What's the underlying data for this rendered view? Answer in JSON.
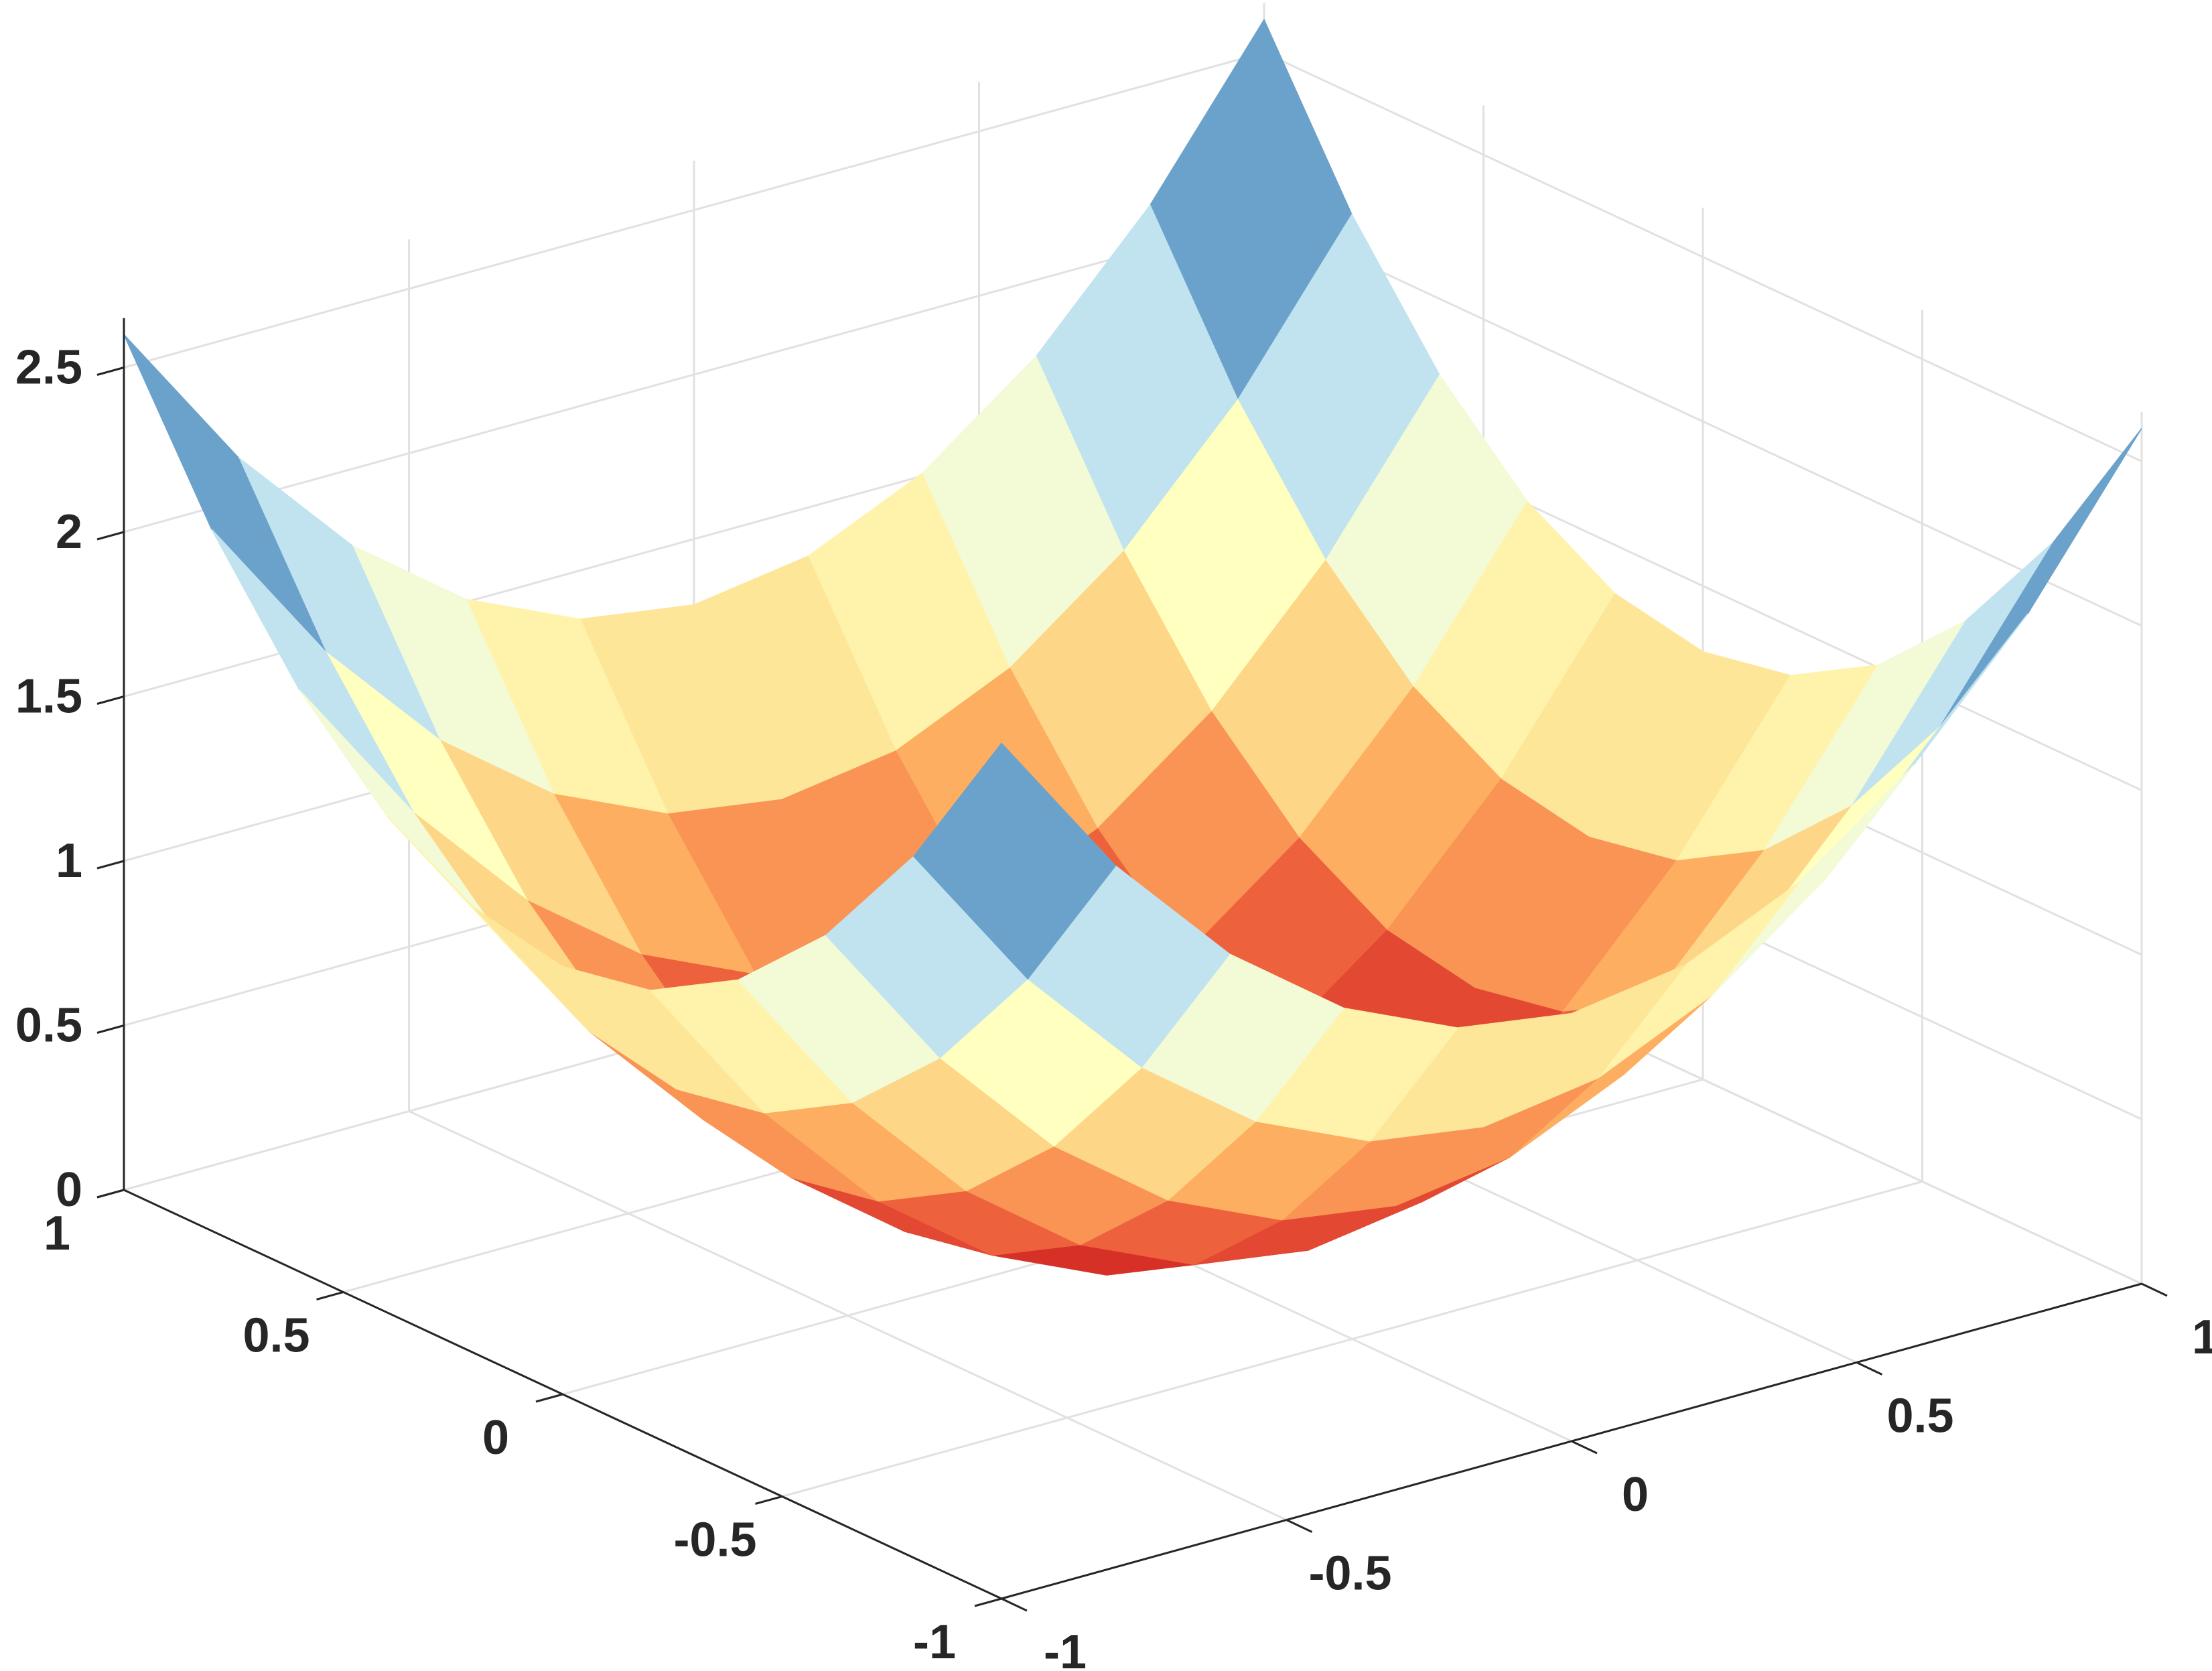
{
  "chart_data": {
    "type": "surface",
    "x": [
      -1,
      -0.8,
      -0.6,
      -0.4,
      -0.2,
      0,
      0.2,
      0.4,
      0.6,
      0.8,
      1
    ],
    "y": [
      -1,
      -0.8,
      -0.6,
      -0.4,
      -0.2,
      0,
      0.2,
      0.4,
      0.6,
      0.8,
      1
    ],
    "z": [
      [
        2.6,
        2.132,
        1.768,
        1.508,
        1.352,
        1.3,
        1.352,
        1.508,
        1.768,
        2.132,
        2.6
      ],
      [
        2.132,
        1.664,
        1.3,
        1.04,
        0.884,
        0.832,
        0.884,
        1.04,
        1.3,
        1.664,
        2.132
      ],
      [
        1.768,
        1.3,
        0.936,
        0.676,
        0.52,
        0.468,
        0.52,
        0.676,
        0.936,
        1.3,
        1.768
      ],
      [
        1.508,
        1.04,
        0.676,
        0.416,
        0.26,
        0.208,
        0.26,
        0.416,
        0.676,
        1.04,
        1.508
      ],
      [
        1.352,
        0.884,
        0.52,
        0.26,
        0.104,
        0.052,
        0.104,
        0.26,
        0.52,
        0.884,
        1.352
      ],
      [
        1.3,
        0.832,
        0.468,
        0.208,
        0.052,
        0,
        0.052,
        0.208,
        0.468,
        0.832,
        1.3
      ],
      [
        1.352,
        0.884,
        0.52,
        0.26,
        0.104,
        0.052,
        0.104,
        0.26,
        0.52,
        0.884,
        1.352
      ],
      [
        1.508,
        1.04,
        0.676,
        0.416,
        0.26,
        0.208,
        0.26,
        0.416,
        0.676,
        1.04,
        1.508
      ],
      [
        1.768,
        1.3,
        0.936,
        0.676,
        0.52,
        0.468,
        0.52,
        0.676,
        0.936,
        1.3,
        1.768
      ],
      [
        2.132,
        1.664,
        1.3,
        1.04,
        0.884,
        0.832,
        0.884,
        1.04,
        1.3,
        1.664,
        2.132
      ],
      [
        2.6,
        2.132,
        1.768,
        1.508,
        1.352,
        1.3,
        1.352,
        1.508,
        1.768,
        2.132,
        2.6
      ]
    ],
    "xlim": [
      -1,
      1
    ],
    "ylim": [
      -1,
      1
    ],
    "zlim": [
      0,
      2.65
    ],
    "xticks": [
      -1,
      -0.5,
      0,
      0.5,
      1
    ],
    "yticks": [
      -1,
      -0.5,
      0,
      0.5,
      1
    ],
    "zticks": [
      0,
      0.5,
      1,
      1.5,
      2,
      2.5
    ],
    "grid": true,
    "colormap": [
      "#a50026",
      "#d73027",
      "#f46d43",
      "#fdae61",
      "#fee090",
      "#ffffbf",
      "#e0f3f8",
      "#abd9e9",
      "#74add1",
      "#4575b4",
      "#313695"
    ]
  }
}
